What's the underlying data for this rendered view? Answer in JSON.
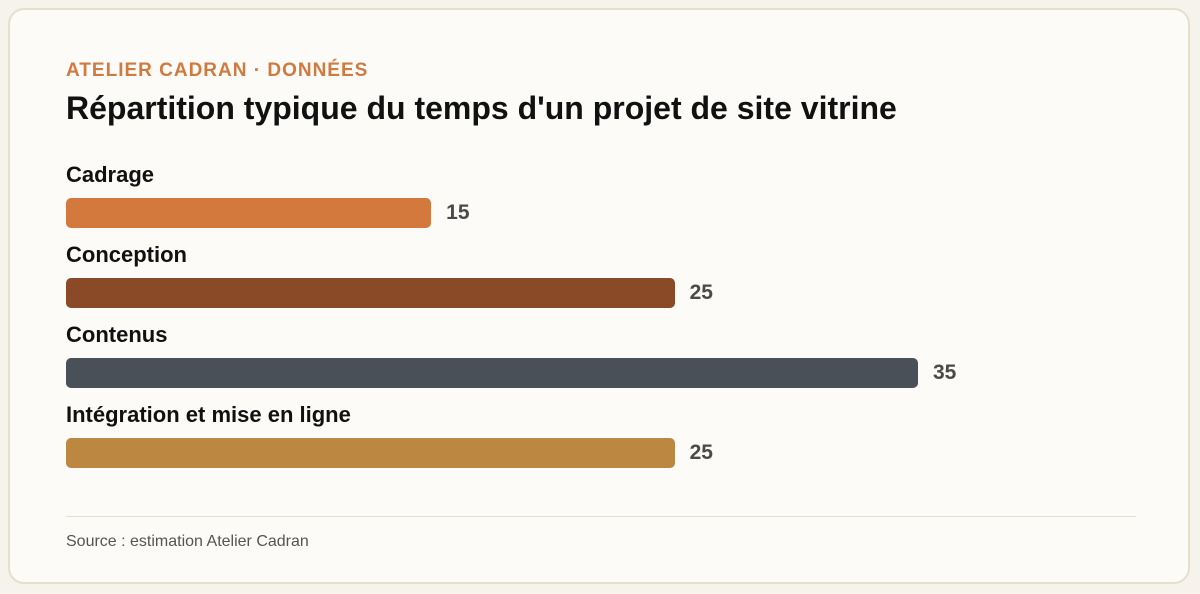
{
  "header": {
    "eyebrow": "ATELIER CADRAN · DONNÉES",
    "title": "Répartition typique du temps d'un projet de site vitrine"
  },
  "chart_data": {
    "type": "bar",
    "orientation": "horizontal",
    "categories": [
      "Cadrage",
      "Conception",
      "Contenus",
      "Intégration et mise en ligne"
    ],
    "values": [
      15,
      25,
      35,
      25
    ],
    "colors": [
      "#d4793e",
      "#8b4a27",
      "#4a5057",
      "#bb8741"
    ],
    "xlim": [
      0,
      35
    ],
    "grid": false,
    "data_labels": true
  },
  "footer": {
    "source": "Source : estimation Atelier Cadran"
  }
}
